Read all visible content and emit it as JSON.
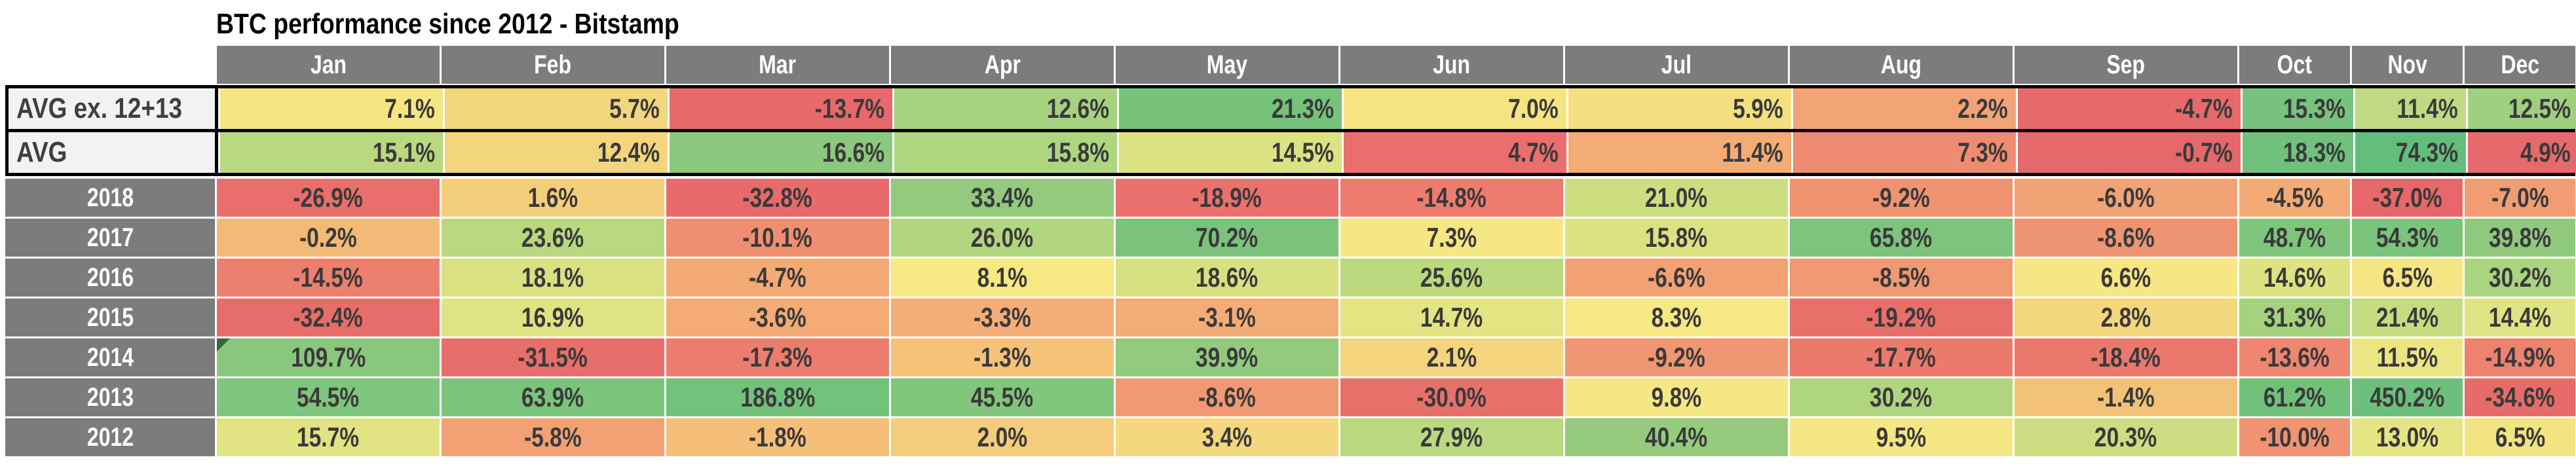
{
  "title": "BTC performance since 2012 - Bitstamp",
  "columns": [
    "Jan",
    "Feb",
    "Mar",
    "Apr",
    "May",
    "Jun",
    "Jul",
    "Aug",
    "Sep",
    "Oct",
    "Nov",
    "Dec"
  ],
  "colors": {
    "header_bg": "#7C7C7C",
    "year_label_bg": "#7C7C7C",
    "avg_label_bg": "#F2F2F2",
    "header_text": "#FFFFFF",
    "value_text": "#3A3A3A",
    "block_border": "#000000",
    "corner_indicator_green": "#316A31",
    "scale_red": "#E7696B",
    "scale_yellow": "#F6E783",
    "scale_green": "#6BC07B"
  },
  "marker": {
    "row_label": "2014",
    "col": "Jan",
    "icon": "green-corner-indicator-icon"
  },
  "rows": [
    {
      "label": "AVG ex. 12+13",
      "group": "avg",
      "align": "right",
      "values": [
        "7.1%",
        "5.7%",
        "-13.7%",
        "12.6%",
        "21.3%",
        "7.0%",
        "5.9%",
        "2.2%",
        "-4.7%",
        "15.3%",
        "11.4%",
        "12.5%"
      ],
      "colors": [
        "#F6E583",
        "#F3D57D",
        "#E8696B",
        "#A6D27F",
        "#77C37C",
        "#F6E483",
        "#F5DF81",
        "#F2A476",
        "#E66A6B",
        "#77C37D",
        "#BFDA82",
        "#9FD07F"
      ]
    },
    {
      "label": "AVG",
      "group": "avg",
      "align": "right",
      "values": [
        "15.1%",
        "12.4%",
        "16.6%",
        "15.8%",
        "14.5%",
        "4.7%",
        "11.4%",
        "7.3%",
        "-0.7%",
        "18.3%",
        "74.3%",
        "4.9%"
      ],
      "colors": [
        "#B9D880",
        "#F3D57D",
        "#8CC87E",
        "#AED580",
        "#DDE282",
        "#EA6E6B",
        "#F3AC74",
        "#EF8B70",
        "#E5686B",
        "#70C17C",
        "#64BE7B",
        "#E6696B"
      ]
    },
    {
      "label": "2018",
      "group": "year",
      "align": "center",
      "values": [
        "-26.9%",
        "1.6%",
        "-32.8%",
        "33.4%",
        "-18.9%",
        "-14.8%",
        "21.0%",
        "-9.2%",
        "-6.0%",
        "-4.5%",
        "-37.0%",
        "-7.0%"
      ],
      "colors": [
        "#EA6F6C",
        "#F4CF7B",
        "#E86A6B",
        "#93CA7E",
        "#EA716D",
        "#ED7C6E",
        "#CDDE81",
        "#F09371",
        "#F2A375",
        "#F3AB76",
        "#E7676A",
        "#F19D73"
      ]
    },
    {
      "label": "2017",
      "group": "year",
      "align": "center",
      "values": [
        "-0.2%",
        "23.6%",
        "-10.1%",
        "26.0%",
        "70.2%",
        "7.3%",
        "15.8%",
        "65.8%",
        "-8.6%",
        "48.7%",
        "54.3%",
        "39.8%"
      ],
      "colors": [
        "#F3B977",
        "#B9D880",
        "#EF8F71",
        "#B2D67F",
        "#7BC37C",
        "#F5E783",
        "#DCE282",
        "#7DC47D",
        "#EF9472",
        "#7FC67D",
        "#7AC47C",
        "#90C97E"
      ]
    },
    {
      "label": "2016",
      "group": "year",
      "align": "center",
      "values": [
        "-14.5%",
        "18.1%",
        "-4.7%",
        "8.1%",
        "18.6%",
        "25.6%",
        "-6.6%",
        "-8.5%",
        "6.6%",
        "14.6%",
        "6.5%",
        "30.2%"
      ],
      "colors": [
        "#EC7F6E",
        "#DAE182",
        "#F3AA75",
        "#F6E883",
        "#D8E182",
        "#BCD980",
        "#F2A175",
        "#F09973",
        "#F6E684",
        "#DDE282",
        "#F6E584",
        "#A9D480"
      ]
    },
    {
      "label": "2015",
      "group": "year",
      "align": "center",
      "values": [
        "-32.4%",
        "16.9%",
        "-3.6%",
        "-3.3%",
        "-3.1%",
        "14.7%",
        "8.3%",
        "-19.2%",
        "2.8%",
        "31.3%",
        "21.4%",
        "14.4%"
      ],
      "colors": [
        "#E76D6A",
        "#E0E383",
        "#F4AB75",
        "#F4AD76",
        "#F4AC76",
        "#E4E483",
        "#F6E884",
        "#E96F6B",
        "#F4D67D",
        "#A5D27F",
        "#C6DC81",
        "#DFE383"
      ]
    },
    {
      "label": "2014",
      "group": "year",
      "align": "center",
      "values": [
        "109.7%",
        "-31.5%",
        "-17.3%",
        "-1.3%",
        "39.9%",
        "2.1%",
        "-9.2%",
        "-17.7%",
        "-18.4%",
        "-13.6%",
        "11.5%",
        "-14.9%"
      ],
      "colors": [
        "#89C77F",
        "#E86E6B",
        "#EC7D6E",
        "#F5C27A",
        "#93CA7E",
        "#F4D57D",
        "#F09672",
        "#EB7A6D",
        "#EA786C",
        "#EE8670",
        "#EBE684",
        "#ED826F"
      ]
    },
    {
      "label": "2013",
      "group": "year",
      "align": "center",
      "values": [
        "54.5%",
        "63.9%",
        "186.8%",
        "45.5%",
        "-8.6%",
        "-30.0%",
        "9.8%",
        "30.2%",
        "-1.4%",
        "61.2%",
        "450.2%",
        "-34.6%"
      ],
      "colors": [
        "#7EC57D",
        "#7BC47C",
        "#72C27B",
        "#82C67D",
        "#F09973",
        "#E8706B",
        "#F5E884",
        "#AFD580",
        "#F3C279",
        "#72C17B",
        "#6CC07B",
        "#E76C69"
      ]
    },
    {
      "label": "2012",
      "group": "year",
      "align": "center",
      "values": [
        "15.7%",
        "-5.8%",
        "-1.8%",
        "2.0%",
        "3.4%",
        "27.9%",
        "40.4%",
        "9.5%",
        "20.3%",
        "-10.0%",
        "13.0%",
        "6.5%"
      ],
      "colors": [
        "#E2E383",
        "#F2A175",
        "#F5BE79",
        "#F5CC7B",
        "#F4D77E",
        "#BAD981",
        "#96CB7E",
        "#F4E783",
        "#CCDE81",
        "#EF9372",
        "#E6E583",
        "#F3E482"
      ]
    }
  ],
  "chart_data": {
    "type": "heatmap",
    "title": "BTC performance since 2012 - Bitstamp",
    "x_categories": [
      "Jan",
      "Feb",
      "Mar",
      "Apr",
      "May",
      "Jun",
      "Jul",
      "Aug",
      "Sep",
      "Oct",
      "Nov",
      "Dec"
    ],
    "y_categories": [
      "AVG ex. 12+13",
      "AVG",
      "2018",
      "2017",
      "2016",
      "2015",
      "2014",
      "2013",
      "2012"
    ],
    "unit": "percent",
    "colormap": "red-yellow-green",
    "series": [
      {
        "name": "AVG ex. 12+13",
        "values": [
          7.1,
          5.7,
          -13.7,
          12.6,
          21.3,
          7.0,
          5.9,
          2.2,
          -4.7,
          15.3,
          11.4,
          12.5
        ]
      },
      {
        "name": "AVG",
        "values": [
          15.1,
          12.4,
          16.6,
          15.8,
          14.5,
          4.7,
          11.4,
          7.3,
          -0.7,
          18.3,
          74.3,
          4.9
        ]
      },
      {
        "name": "2018",
        "values": [
          -26.9,
          1.6,
          -32.8,
          33.4,
          -18.9,
          -14.8,
          21.0,
          -9.2,
          -6.0,
          -4.5,
          -37.0,
          -7.0
        ]
      },
      {
        "name": "2017",
        "values": [
          -0.2,
          23.6,
          -10.1,
          26.0,
          70.2,
          7.3,
          15.8,
          65.8,
          -8.6,
          48.7,
          54.3,
          39.8
        ]
      },
      {
        "name": "2016",
        "values": [
          -14.5,
          18.1,
          -4.7,
          8.1,
          18.6,
          25.6,
          -6.6,
          -8.5,
          6.6,
          14.6,
          6.5,
          30.2
        ]
      },
      {
        "name": "2015",
        "values": [
          -32.4,
          16.9,
          -3.6,
          -3.3,
          -3.1,
          14.7,
          8.3,
          -19.2,
          2.8,
          31.3,
          21.4,
          14.4
        ]
      },
      {
        "name": "2014",
        "values": [
          109.7,
          -31.5,
          -17.3,
          -1.3,
          39.9,
          2.1,
          -9.2,
          -17.7,
          -18.4,
          -13.6,
          11.5,
          -14.9
        ]
      },
      {
        "name": "2013",
        "values": [
          54.5,
          63.9,
          186.8,
          45.5,
          -8.6,
          -30.0,
          9.8,
          30.2,
          -1.4,
          61.2,
          450.2,
          -34.6
        ]
      },
      {
        "name": "2012",
        "values": [
          15.7,
          -5.8,
          -1.8,
          2.0,
          3.4,
          27.9,
          40.4,
          9.5,
          20.3,
          -10.0,
          13.0,
          6.5
        ]
      }
    ]
  }
}
